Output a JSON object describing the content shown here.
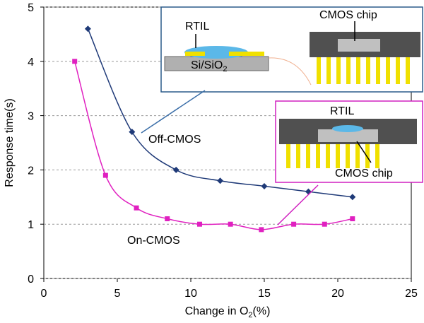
{
  "chart_data": {
    "type": "line",
    "x_label": [
      "Change in O",
      "2",
      "(%)"
    ],
    "y_label": "Response time(s)",
    "xlim": [
      0,
      25
    ],
    "xticks": [
      0,
      5,
      10,
      15,
      20,
      25
    ],
    "ylim": [
      0,
      5
    ],
    "yticks": [
      0,
      1,
      2,
      3,
      4,
      5
    ],
    "grid": true,
    "series": [
      {
        "name": "Off-CMOS",
        "color": "#1f3a78",
        "marker": "diamond",
        "x": [
          3,
          6,
          9,
          12,
          15,
          18,
          21
        ],
        "values": [
          4.6,
          2.7,
          2.0,
          1.8,
          1.7,
          1.6,
          1.5
        ]
      },
      {
        "name": "On-CMOS",
        "color": "#e020c0",
        "marker": "square",
        "x": [
          2.1,
          4.2,
          6.3,
          8.4,
          10.6,
          12.7,
          14.8,
          17.0,
          19.1,
          21.0
        ],
        "values": [
          4.0,
          1.9,
          1.3,
          1.1,
          1.0,
          1.0,
          0.9,
          1.0,
          1.0,
          1.1
        ]
      }
    ],
    "annotations": {
      "inset1_rtil": "RTIL",
      "inset1_sub": [
        "Si/SiO",
        "2"
      ],
      "inset1_chip": "CMOS chip",
      "inset2_rtil": "RTIL",
      "inset2_chip": "CMOS chip"
    }
  }
}
